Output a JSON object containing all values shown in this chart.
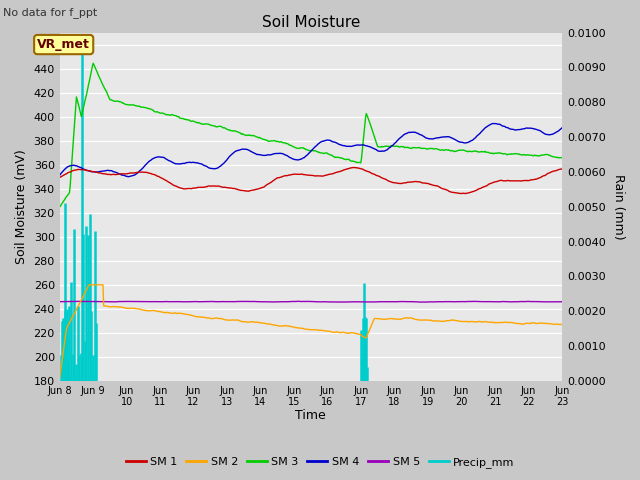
{
  "title": "Soil Moisture",
  "subtitle": "No data for f_ppt",
  "xlabel": "Time",
  "ylabel_left": "Soil Moisture (mV)",
  "ylabel_right": "Rain (mm)",
  "ylim_left": [
    180,
    470
  ],
  "ylim_right": [
    0.0,
    0.01
  ],
  "bg_color": "#e8e8e8",
  "grid_color": "#ffffff",
  "sm1_color": "#cc0000",
  "sm2_color": "#ffa500",
  "sm3_color": "#00cc00",
  "sm4_color": "#0000cc",
  "sm5_color": "#9900bb",
  "precip_color": "#00cccc",
  "vr_met_label": "VR_met",
  "vr_met_bg": "#ffff99",
  "vr_met_border": "#996600",
  "fig_facecolor": "#c8c8c8",
  "n_days": 15,
  "n_pts": 720,
  "seed": 100
}
